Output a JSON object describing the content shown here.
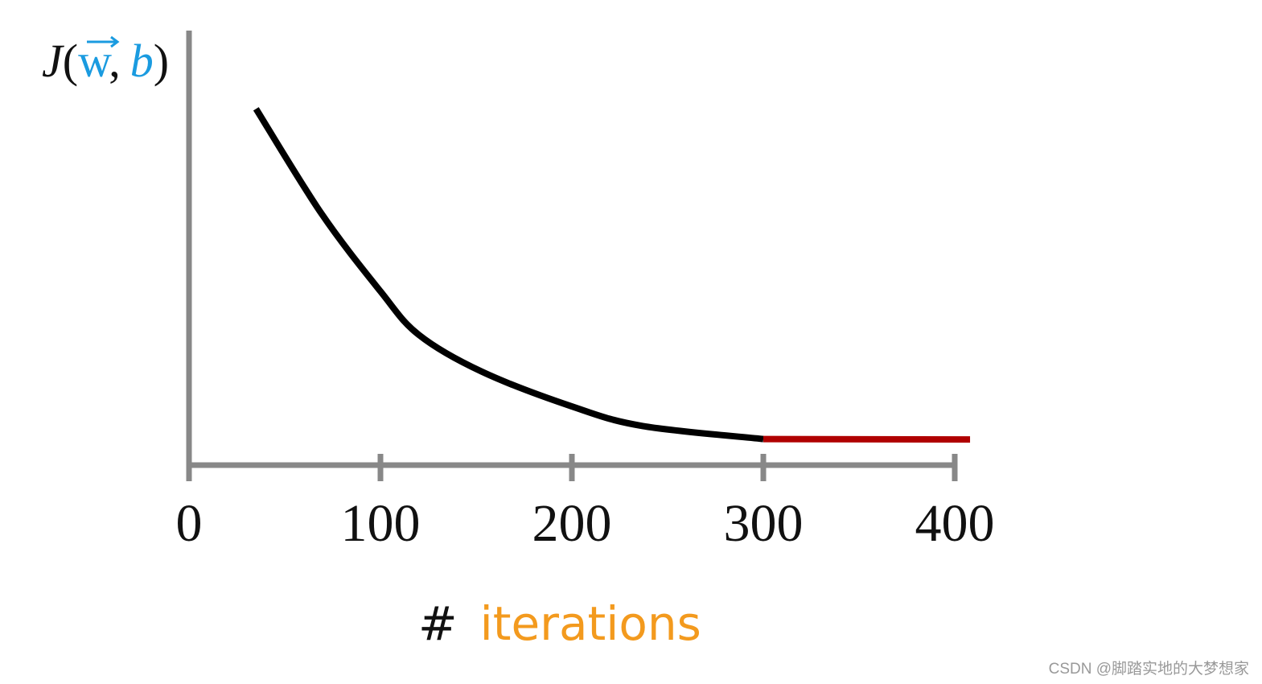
{
  "chart_data": {
    "type": "line",
    "ylabel_parts": [
      "J",
      "(",
      "w",
      ",",
      "b",
      ")"
    ],
    "xlabel_parts": [
      "#",
      "iterations"
    ],
    "x": [
      35,
      69,
      100,
      120,
      153,
      200,
      237,
      300,
      408
    ],
    "series": [
      {
        "color": "#000000",
        "values": [
          82,
          58,
          40,
          30,
          21.5,
          13.5,
          9,
          6,
          null
        ]
      },
      {
        "color": "#b00000",
        "values": [
          null,
          null,
          null,
          null,
          null,
          null,
          null,
          6,
          5.9
        ]
      }
    ],
    "xlim": [
      0,
      400
    ],
    "xticks": [
      0,
      100,
      200,
      300,
      400
    ],
    "ylim": [
      0,
      100
    ],
    "watermark": "CSDN @脚踏实地的大梦想家"
  }
}
